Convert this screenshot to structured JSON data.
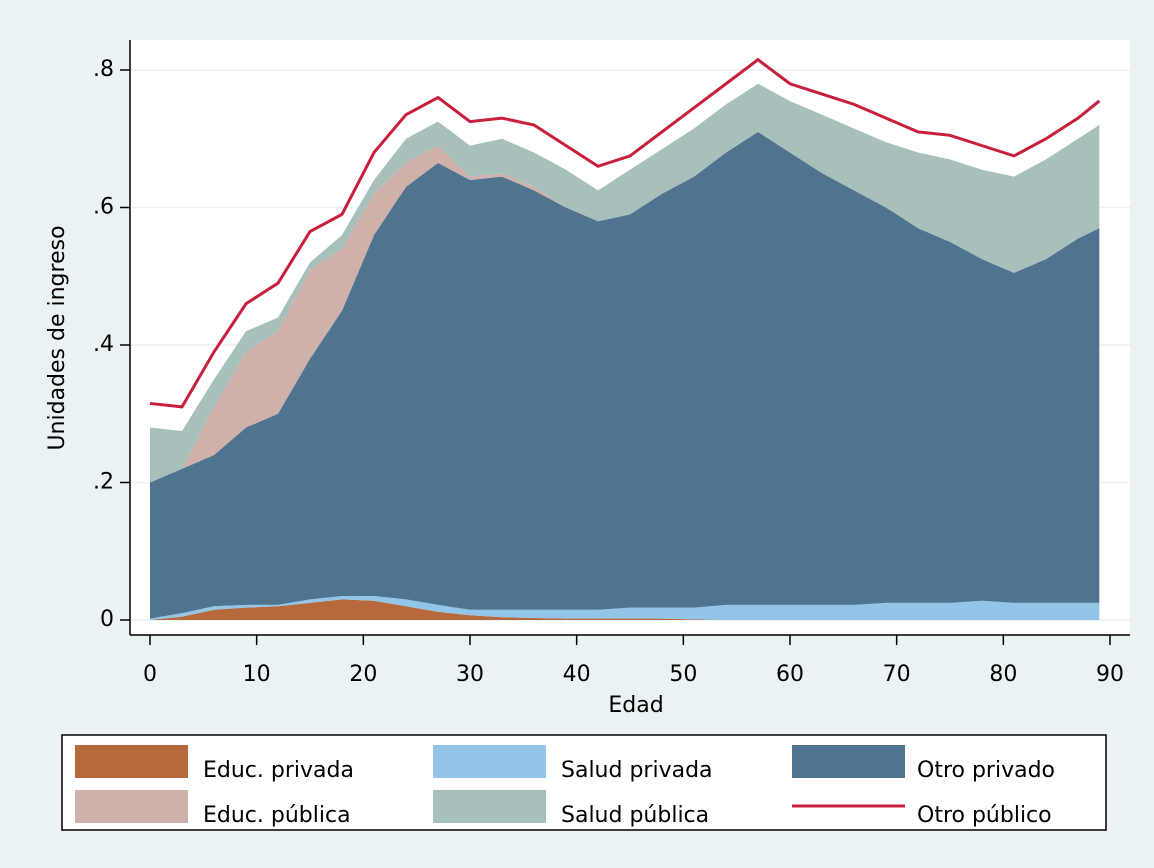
{
  "chart_data": {
    "type": "area",
    "stacked": true,
    "x": [
      0,
      3,
      6,
      9,
      12,
      15,
      18,
      21,
      24,
      27,
      30,
      33,
      36,
      39,
      42,
      45,
      48,
      51,
      54,
      57,
      60,
      63,
      66,
      69,
      72,
      75,
      78,
      81,
      84,
      87,
      89
    ],
    "series": [
      {
        "name": "Educ. privada",
        "color": "#b5693d",
        "values": [
          0,
          0.005,
          0.015,
          0.018,
          0.02,
          0.025,
          0.03,
          0.028,
          0.02,
          0.012,
          0.007,
          0.004,
          0.003,
          0.002,
          0.002,
          0.002,
          0.002,
          0.001,
          0,
          0,
          0,
          0,
          0,
          0,
          0,
          0,
          0,
          0,
          0,
          0,
          0
        ]
      },
      {
        "name": "Salud privada",
        "color": "#92c5e8",
        "values": [
          0.002,
          0.005,
          0.005,
          0.004,
          0.002,
          0.005,
          0.005,
          0.007,
          0.01,
          0.01,
          0.008,
          0.011,
          0.012,
          0.013,
          0.013,
          0.016,
          0.016,
          0.017,
          0.022,
          0.022,
          0.022,
          0.022,
          0.022,
          0.025,
          0.025,
          0.025,
          0.028,
          0.025,
          0.025,
          0.025,
          0.025
        ]
      },
      {
        "name": "Otro privado",
        "color": "#4f7490",
        "values": [
          0.198,
          0.21,
          0.22,
          0.258,
          0.278,
          0.35,
          0.415,
          0.525,
          0.6,
          0.643,
          0.625,
          0.63,
          0.61,
          0.585,
          0.565,
          0.572,
          0.602,
          0.627,
          0.658,
          0.688,
          0.658,
          0.628,
          0.603,
          0.575,
          0.545,
          0.525,
          0.497,
          0.48,
          0.5,
          0.53,
          0.545
        ]
      },
      {
        "name": "Educ. pública",
        "color": "#cfb1ab",
        "values": [
          0,
          0,
          0.07,
          0.11,
          0.12,
          0.13,
          0.09,
          0.06,
          0.035,
          0.025,
          0.005,
          0.005,
          0.005,
          0,
          0,
          0,
          0,
          0,
          0,
          0,
          0,
          0,
          0,
          0,
          0,
          0,
          0,
          0,
          0,
          0,
          0
        ]
      },
      {
        "name": "Salud pública",
        "color": "#a8c0bc",
        "values": [
          0.08,
          0.055,
          0.04,
          0.03,
          0.02,
          0.01,
          0.02,
          0.02,
          0.035,
          0.035,
          0.045,
          0.05,
          0.05,
          0.055,
          0.045,
          0.065,
          0.065,
          0.07,
          0.07,
          0.07,
          0.075,
          0.085,
          0.09,
          0.095,
          0.11,
          0.12,
          0.13,
          0.14,
          0.145,
          0.145,
          0.15
        ]
      },
      {
        "name": "Otro público",
        "color": "#c8203c",
        "mark": "line",
        "values": [
          0.035,
          0.035,
          0.04,
          0.04,
          0.05,
          0.045,
          0.03,
          0.04,
          0.035,
          0.035,
          0.035,
          0.03,
          0.04,
          0.035,
          0.035,
          0.02,
          0.025,
          0.03,
          0.03,
          0.035,
          0.025,
          0.03,
          0.035,
          0.035,
          0.03,
          0.035,
          0.035,
          0.03,
          0.03,
          0.03,
          0.035
        ]
      }
    ],
    "xlabel": "Edad",
    "ylabel": "Unidades de ingreso",
    "xlim": [
      0,
      90
    ],
    "xticks": [
      0,
      10,
      20,
      30,
      40,
      50,
      60,
      70,
      80,
      90
    ],
    "ylim": [
      0,
      0.8
    ],
    "yticks": [
      0,
      {
        "value": 0.2,
        "label": ".2"
      },
      {
        "value": 0.4,
        "label": ".4"
      },
      {
        "value": 0.6,
        "label": ".6"
      },
      {
        "value": 0.8,
        "label": ".8"
      }
    ],
    "grid": true
  }
}
